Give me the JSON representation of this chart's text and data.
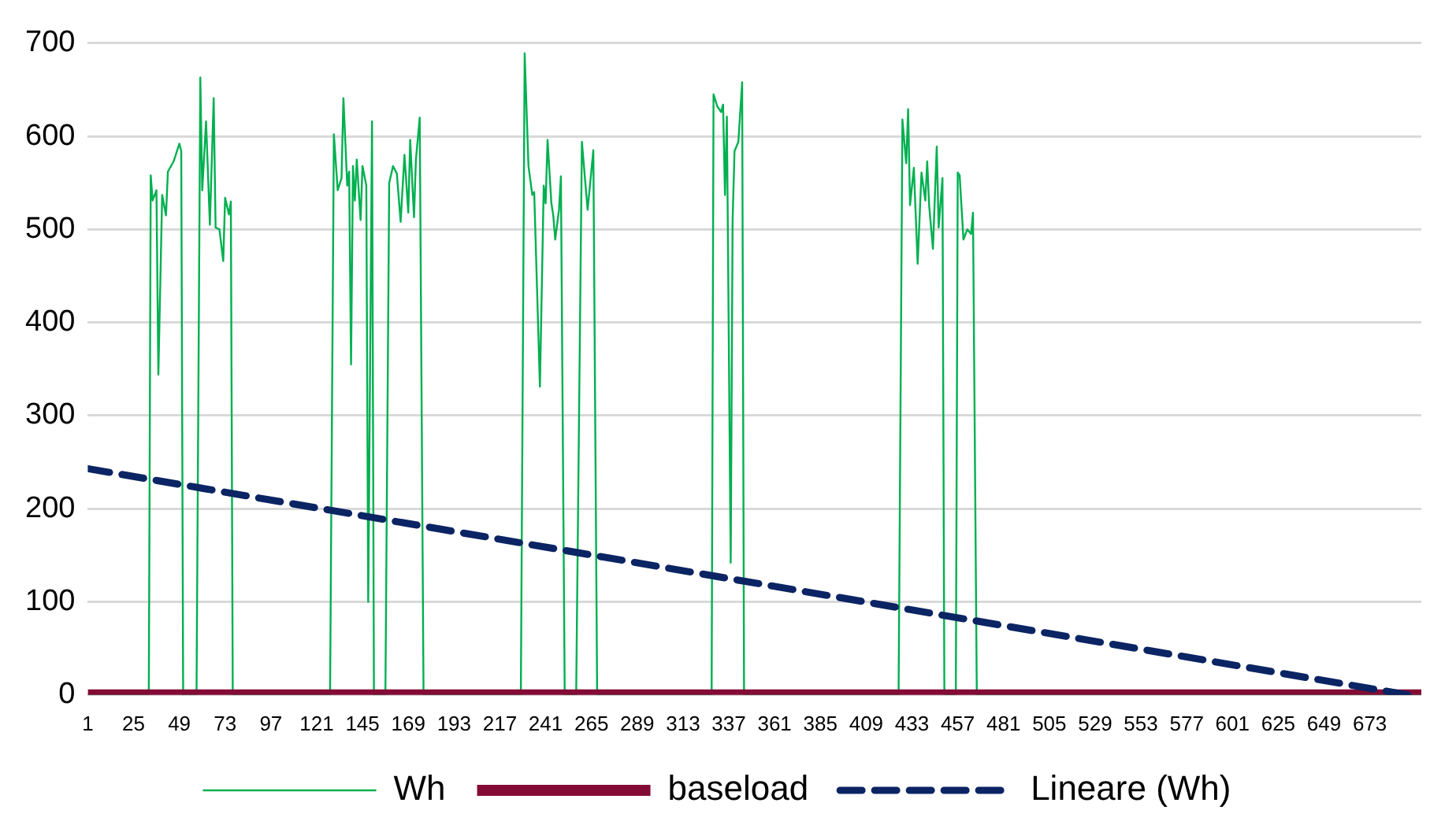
{
  "chart_data": {
    "type": "line",
    "xlim": [
      1,
      700
    ],
    "xticks": [
      1,
      25,
      49,
      73,
      97,
      121,
      145,
      169,
      193,
      217,
      241,
      265,
      289,
      313,
      337,
      361,
      385,
      409,
      433,
      457,
      481,
      505,
      529,
      553,
      577,
      601,
      625,
      649,
      673
    ],
    "ylim": [
      0,
      700
    ],
    "yticks": [
      0,
      100,
      200,
      300,
      400,
      500,
      600,
      700
    ],
    "grid": "y",
    "legend": "bottom",
    "marker": "none",
    "series": [
      {
        "name": "Wh",
        "color": "#00b050",
        "line_style": "solid",
        "x": [
          1,
          33,
          34,
          35,
          37,
          38,
          40,
          42,
          43,
          46,
          49,
          50,
          51,
          58,
          60,
          61,
          63,
          65,
          67,
          68,
          70,
          72,
          73,
          75,
          76,
          77,
          128,
          130,
          132,
          134,
          135,
          137,
          138,
          139,
          140,
          141,
          142,
          144,
          145,
          147,
          148,
          150,
          151,
          157,
          159,
          161,
          163,
          165,
          167,
          169,
          170,
          172,
          173,
          175,
          177,
          228,
          230,
          232,
          234,
          235,
          238,
          240,
          241,
          242,
          244,
          245,
          246,
          248,
          249,
          251,
          257,
          260,
          263,
          266,
          268,
          328,
          329,
          331,
          333,
          334,
          335,
          336,
          338,
          339,
          340,
          342,
          344,
          345,
          426,
          428,
          430,
          431,
          432,
          434,
          436,
          438,
          440,
          441,
          442,
          444,
          446,
          447,
          449,
          450,
          456,
          457,
          458,
          460,
          462,
          464,
          465,
          467,
          700
        ],
        "values": [
          0,
          0,
          558,
          531,
          542,
          344,
          537,
          515,
          562,
          573,
          592,
          584,
          0,
          0,
          663,
          542,
          616,
          505,
          641,
          502,
          500,
          466,
          534,
          516,
          530,
          0,
          0,
          602,
          542,
          555,
          641,
          547,
          562,
          355,
          568,
          531,
          575,
          510,
          568,
          547,
          100,
          616,
          0,
          0,
          550,
          568,
          560,
          508,
          580,
          518,
          596,
          513,
          575,
          620,
          0,
          0,
          689,
          568,
          537,
          540,
          331,
          547,
          528,
          596,
          528,
          515,
          489,
          521,
          557,
          0,
          0,
          594,
          521,
          585,
          0,
          0,
          645,
          632,
          626,
          634,
          537,
          621,
          142,
          510,
          584,
          594,
          658,
          0,
          0,
          618,
          571,
          629,
          526,
          566,
          463,
          561,
          531,
          573,
          526,
          479,
          589,
          502,
          555,
          0,
          0,
          561,
          558,
          489,
          500,
          495,
          518,
          0,
          0
        ]
      },
      {
        "name": "baseload",
        "color": "#840b36",
        "line_style": "solid",
        "x": [
          1,
          700
        ],
        "values": [
          0,
          0
        ]
      },
      {
        "name": "Lineare (Wh)",
        "color": "#0b2463",
        "line_style": "dashed",
        "x": [
          1,
          693
        ],
        "values": [
          243,
          0
        ]
      }
    ]
  }
}
